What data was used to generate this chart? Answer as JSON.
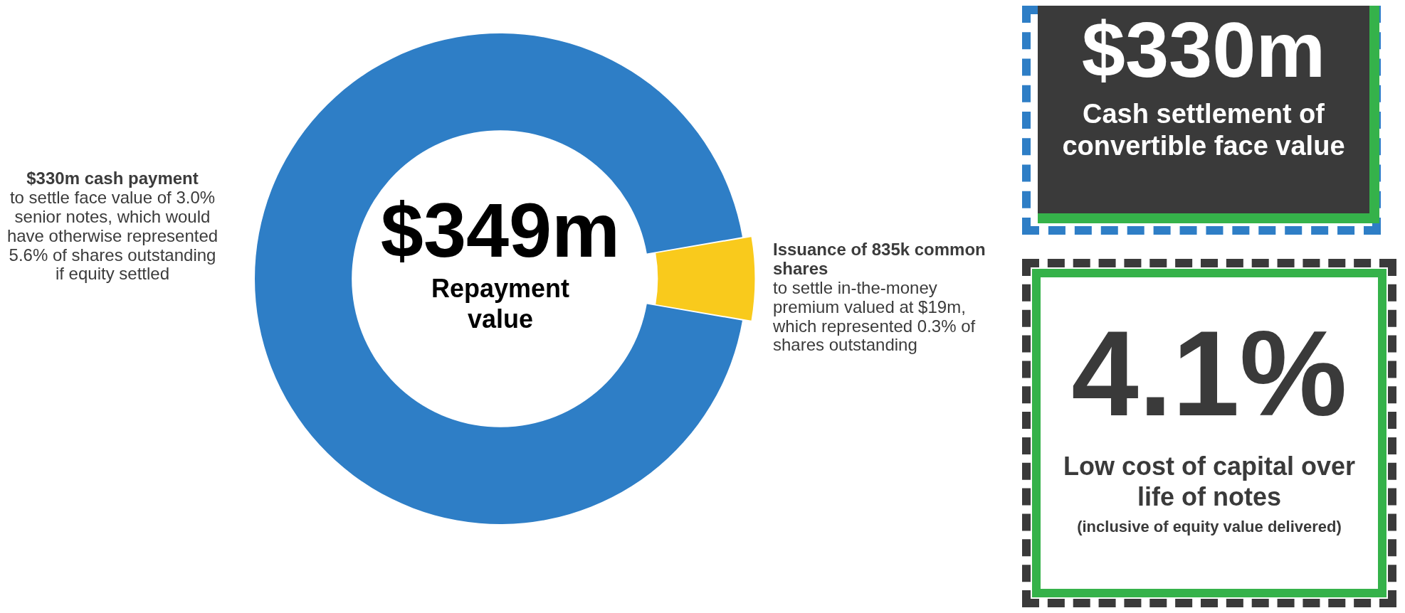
{
  "chart_data": [
    {
      "type": "donut",
      "categories": [
        "$330m cash payment",
        "Issuance of 835k common shares"
      ],
      "values": [
        330,
        19
      ],
      "colors": [
        "#2e7ec6",
        "#f9ca1c"
      ],
      "annotations": [
        "to settle face value of 3.0% senior notes, which would have otherwise represented 5.6% of shares outstanding if equity settled",
        "to settle in-the-money premium valued at $19m, which represented 0.3% of shares outstanding",
        "$349m",
        "Repayment value"
      ]
    },
    {
      "type": "other",
      "annotations": [
        "$330m",
        "Cash settlement of convertible face value",
        "4.1%",
        "Low cost of capital over life of notes",
        "(inclusive of equity value delivered)"
      ]
    }
  ]
}
